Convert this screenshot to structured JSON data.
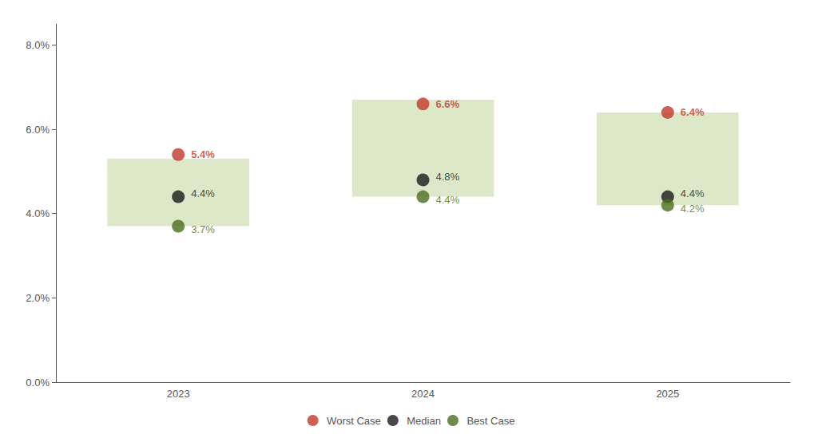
{
  "chart_data": {
    "type": "scatter",
    "categories": [
      "2023",
      "2024",
      "2025"
    ],
    "series": [
      {
        "name": "Worst Case",
        "color": "#c0392b",
        "values": [
          5.4,
          6.6,
          6.4
        ],
        "value_labels": [
          "5.4%",
          "6.6%",
          "6.4%"
        ]
      },
      {
        "name": "Median",
        "color": "#1a1a1a",
        "values": [
          4.4,
          4.8,
          4.4
        ],
        "value_labels": [
          "4.4%",
          "4.8%",
          "4.4%"
        ]
      },
      {
        "name": "Best Case",
        "color": "#4a6e1e",
        "values": [
          3.7,
          4.4,
          4.2
        ],
        "value_labels": [
          "3.7%",
          "4.4%",
          "4.2%"
        ]
      }
    ],
    "band": {
      "top": [
        5.3,
        6.7,
        6.4
      ],
      "bottom": [
        3.7,
        4.4,
        4.2
      ],
      "color": "#dce8c8"
    },
    "ylim": [
      0.0,
      8.5
    ],
    "yticks": [
      {
        "value": 0.0,
        "label": "0.0%"
      },
      {
        "value": 2.0,
        "label": "2.0%"
      },
      {
        "value": 4.0,
        "label": "4.0%"
      },
      {
        "value": 6.0,
        "label": "6.0%"
      },
      {
        "value": 8.0,
        "label": "8.0%"
      }
    ],
    "grid": false,
    "legend": "bottom",
    "data_labels": true
  }
}
